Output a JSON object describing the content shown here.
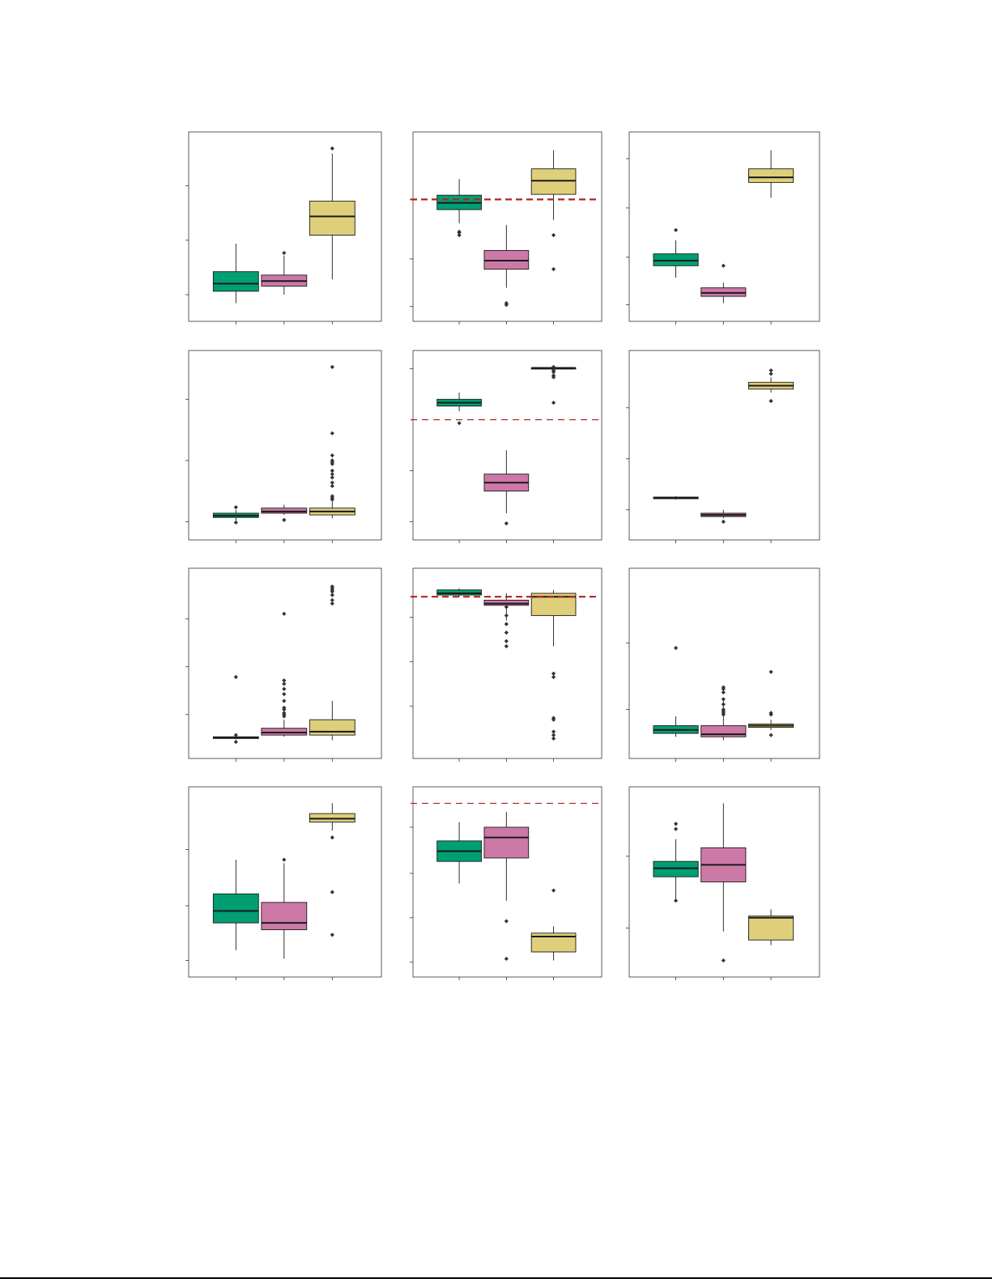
{
  "colors": {
    "green": "#009E73",
    "pink": "#CC79A7",
    "yellow": "#DFCF7A",
    "stroke": "#1a1a1a",
    "refline": "#B22222"
  },
  "chart_data": [
    {
      "type": "box",
      "grid": false,
      "ylim": [
        0,
        100
      ],
      "ticks": [
        10,
        42,
        74
      ],
      "groups": [
        {
          "color": "green",
          "q1": 12,
          "median": 16.5,
          "q3": 23.5,
          "low": 5,
          "high": 40,
          "outliers": []
        },
        {
          "color": "pink",
          "q1": 15,
          "median": 18,
          "q3": 21.5,
          "low": 10,
          "high": 33,
          "outliers": [
            34.5
          ]
        },
        {
          "color": "yellow",
          "q1": 45,
          "median": 56,
          "q3": 65,
          "low": 19,
          "high": 93,
          "outliers": [
            96
          ]
        }
      ]
    },
    {
      "type": "box",
      "grid": false,
      "ylim": [
        0,
        100
      ],
      "refline": 66,
      "refline_style": "bold",
      "ticks": [
        3,
        31,
        66
      ],
      "groups": [
        {
          "color": "green",
          "q1": 60,
          "median": 64,
          "q3": 68.5,
          "low": 52,
          "high": 78,
          "outliers": [
            45,
            46.5,
            47
          ]
        },
        {
          "color": "pink",
          "q1": 25,
          "median": 30,
          "q3": 36,
          "low": 14,
          "high": 51,
          "outliers": [
            4,
            5
          ]
        },
        {
          "color": "yellow",
          "q1": 69,
          "median": 77,
          "q3": 84,
          "low": 54,
          "high": 95,
          "outliers": [
            45,
            25
          ]
        }
      ]
    },
    {
      "type": "box",
      "grid": false,
      "ylim": [
        0,
        100
      ],
      "ticks": [
        4,
        32,
        61,
        90
      ],
      "groups": [
        {
          "color": "green",
          "q1": 27,
          "median": 30,
          "q3": 34,
          "low": 20,
          "high": 42,
          "outliers": [
            48
          ]
        },
        {
          "color": "pink",
          "q1": 9,
          "median": 11,
          "q3": 14,
          "low": 5,
          "high": 17,
          "outliers": [
            27
          ]
        },
        {
          "color": "yellow",
          "q1": 76,
          "median": 79,
          "q3": 84,
          "low": 67,
          "high": 95,
          "outliers": []
        }
      ]
    },
    {
      "type": "box",
      "grid": false,
      "ylim": [
        0,
        100
      ],
      "ticks": [
        5,
        41,
        77
      ],
      "groups": [
        {
          "color": "green",
          "q1": 7.5,
          "median": 8.5,
          "q3": 10,
          "low": 5.5,
          "high": 12,
          "outliers": [
            13.5,
            4.5
          ]
        },
        {
          "color": "pink",
          "q1": 10,
          "median": 11,
          "q3": 13,
          "low": 9,
          "high": 15,
          "outliers": [
            6
          ]
        },
        {
          "color": "yellow",
          "q1": 9,
          "median": 11,
          "q3": 13,
          "low": 7,
          "high": 17,
          "outliers": [
            18,
            19,
            20,
            26,
            28,
            31,
            33,
            35,
            39,
            40,
            41,
            44,
            57,
            96
          ]
        }
      ]
    },
    {
      "type": "box",
      "grid": false,
      "ylim": [
        0,
        100
      ],
      "refline": 65,
      "refline_style": "thin",
      "ticks": [
        5,
        35,
        95
      ],
      "groups": [
        {
          "color": "green",
          "q1": 73,
          "median": 75,
          "q3": 77,
          "low": 70,
          "high": 81,
          "outliers": [
            63
          ]
        },
        {
          "color": "pink",
          "q1": 23,
          "median": 28,
          "q3": 33,
          "low": 10,
          "high": 47,
          "outliers": [
            4
          ]
        },
        {
          "color": "yellow",
          "q1": 95.5,
          "median": 95.5,
          "q3": 95.5,
          "low": 95.5,
          "high": 95.5,
          "outliers": [
            96,
            94,
            93,
            91,
            90,
            75
          ]
        }
      ]
    },
    {
      "type": "box",
      "grid": false,
      "ylim": [
        0,
        100
      ],
      "ticks": [
        12,
        42,
        72
      ],
      "groups": [
        {
          "color": "green",
          "q1": 18.5,
          "median": 19,
          "q3": 19.5,
          "low": 18,
          "high": 20,
          "outliers": []
        },
        {
          "color": "pink",
          "q1": 8,
          "median": 9,
          "q3": 10,
          "low": 7,
          "high": 12,
          "outliers": [
            5
          ]
        },
        {
          "color": "yellow",
          "q1": 83,
          "median": 85,
          "q3": 87,
          "low": 81,
          "high": 90,
          "outliers": [
            76,
            92,
            94
          ]
        }
      ]
    },
    {
      "type": "box",
      "grid": false,
      "ylim": [
        0,
        100
      ],
      "ticks": [
        20,
        48,
        76
      ],
      "groups": [
        {
          "color": "green",
          "q1": 6,
          "median": 6.5,
          "q3": 7,
          "low": 5.5,
          "high": 7,
          "outliers": [
            4,
            8,
            42
          ]
        },
        {
          "color": "pink",
          "q1": 8,
          "median": 9.5,
          "q3": 12,
          "low": 7,
          "high": 17,
          "outliers": [
            19,
            20,
            21,
            23,
            24,
            28,
            32,
            35,
            38,
            40,
            79
          ]
        },
        {
          "color": "yellow",
          "q1": 8,
          "median": 10,
          "q3": 17,
          "low": 5,
          "high": 28,
          "outliers": [
            85,
            87,
            90,
            92,
            93,
            94,
            95
          ]
        }
      ]
    },
    {
      "type": "box",
      "grid": false,
      "ylim": [
        0,
        100
      ],
      "refline": 89,
      "refline_style": "bold",
      "ticks": [
        25,
        51,
        77
      ],
      "groups": [
        {
          "color": "green",
          "q1": 90,
          "median": 91,
          "q3": 93,
          "low": 89,
          "high": 94,
          "outliers": []
        },
        {
          "color": "pink",
          "q1": 84,
          "median": 85,
          "q3": 87,
          "low": 75,
          "high": 91,
          "outliers": [
            83,
            78,
            73,
            68,
            63,
            60
          ]
        },
        {
          "color": "yellow",
          "q1": 78,
          "median": 89,
          "q3": 91,
          "low": 60,
          "high": 93,
          "outliers": [
            44,
            42,
            18,
            17,
            10,
            8,
            6
          ]
        }
      ]
    },
    {
      "type": "box",
      "grid": false,
      "ylim": [
        0,
        100
      ],
      "ticks": [
        23,
        62
      ],
      "groups": [
        {
          "color": "green",
          "q1": 9,
          "median": 11,
          "q3": 13.5,
          "low": 7,
          "high": 19,
          "outliers": [
            59
          ]
        },
        {
          "color": "pink",
          "q1": 7,
          "median": 8.5,
          "q3": 13.5,
          "low": 5,
          "high": 30,
          "outliers": [
            20,
            21,
            22,
            23,
            26,
            29,
            33,
            35,
            36
          ]
        },
        {
          "color": "yellow",
          "q1": 12.5,
          "median": 13.5,
          "q3": 14.5,
          "low": 11,
          "high": 17,
          "outliers": [
            8,
            20,
            21,
            45
          ]
        }
      ]
    },
    {
      "type": "box",
      "grid": false,
      "ylim": [
        0,
        100
      ],
      "ticks": [
        4,
        36,
        69
      ],
      "groups": [
        {
          "color": "green",
          "q1": 26,
          "median": 33,
          "q3": 43,
          "low": 10,
          "high": 63,
          "outliers": []
        },
        {
          "color": "pink",
          "q1": 22,
          "median": 26,
          "q3": 38,
          "low": 5,
          "high": 61,
          "outliers": [
            63
          ]
        },
        {
          "color": "yellow",
          "q1": 85,
          "median": 87,
          "q3": 90,
          "low": 80,
          "high": 96,
          "outliers": [
            76,
            44,
            19
          ]
        }
      ]
    },
    {
      "type": "box",
      "grid": false,
      "ylim": [
        0,
        100
      ],
      "refline": 96,
      "refline_style": "thin",
      "ticks": [
        3,
        29,
        55,
        82
      ],
      "groups": [
        {
          "color": "green",
          "q1": 62,
          "median": 68,
          "q3": 74,
          "low": 49,
          "high": 85,
          "outliers": []
        },
        {
          "color": "pink",
          "q1": 64,
          "median": 76,
          "q3": 82,
          "low": 39,
          "high": 91,
          "outliers": [
            27,
            5
          ]
        },
        {
          "color": "yellow",
          "q1": 9,
          "median": 18,
          "q3": 20,
          "low": 4,
          "high": 24,
          "outliers": [
            45
          ]
        }
      ]
    },
    {
      "type": "box",
      "grid": false,
      "ylim": [
        0,
        100
      ],
      "ticks": [
        23,
        65
      ],
      "groups": [
        {
          "color": "green",
          "q1": 53,
          "median": 58,
          "q3": 62,
          "low": 39,
          "high": 75,
          "outliers": [
            39,
            81,
            84
          ]
        },
        {
          "color": "pink",
          "q1": 50,
          "median": 60,
          "q3": 70,
          "low": 21,
          "high": 96,
          "outliers": [
            4
          ]
        },
        {
          "color": "yellow",
          "q1": 16,
          "median": 29,
          "q3": 30,
          "low": 13,
          "high": 34,
          "outliers": []
        }
      ]
    }
  ]
}
